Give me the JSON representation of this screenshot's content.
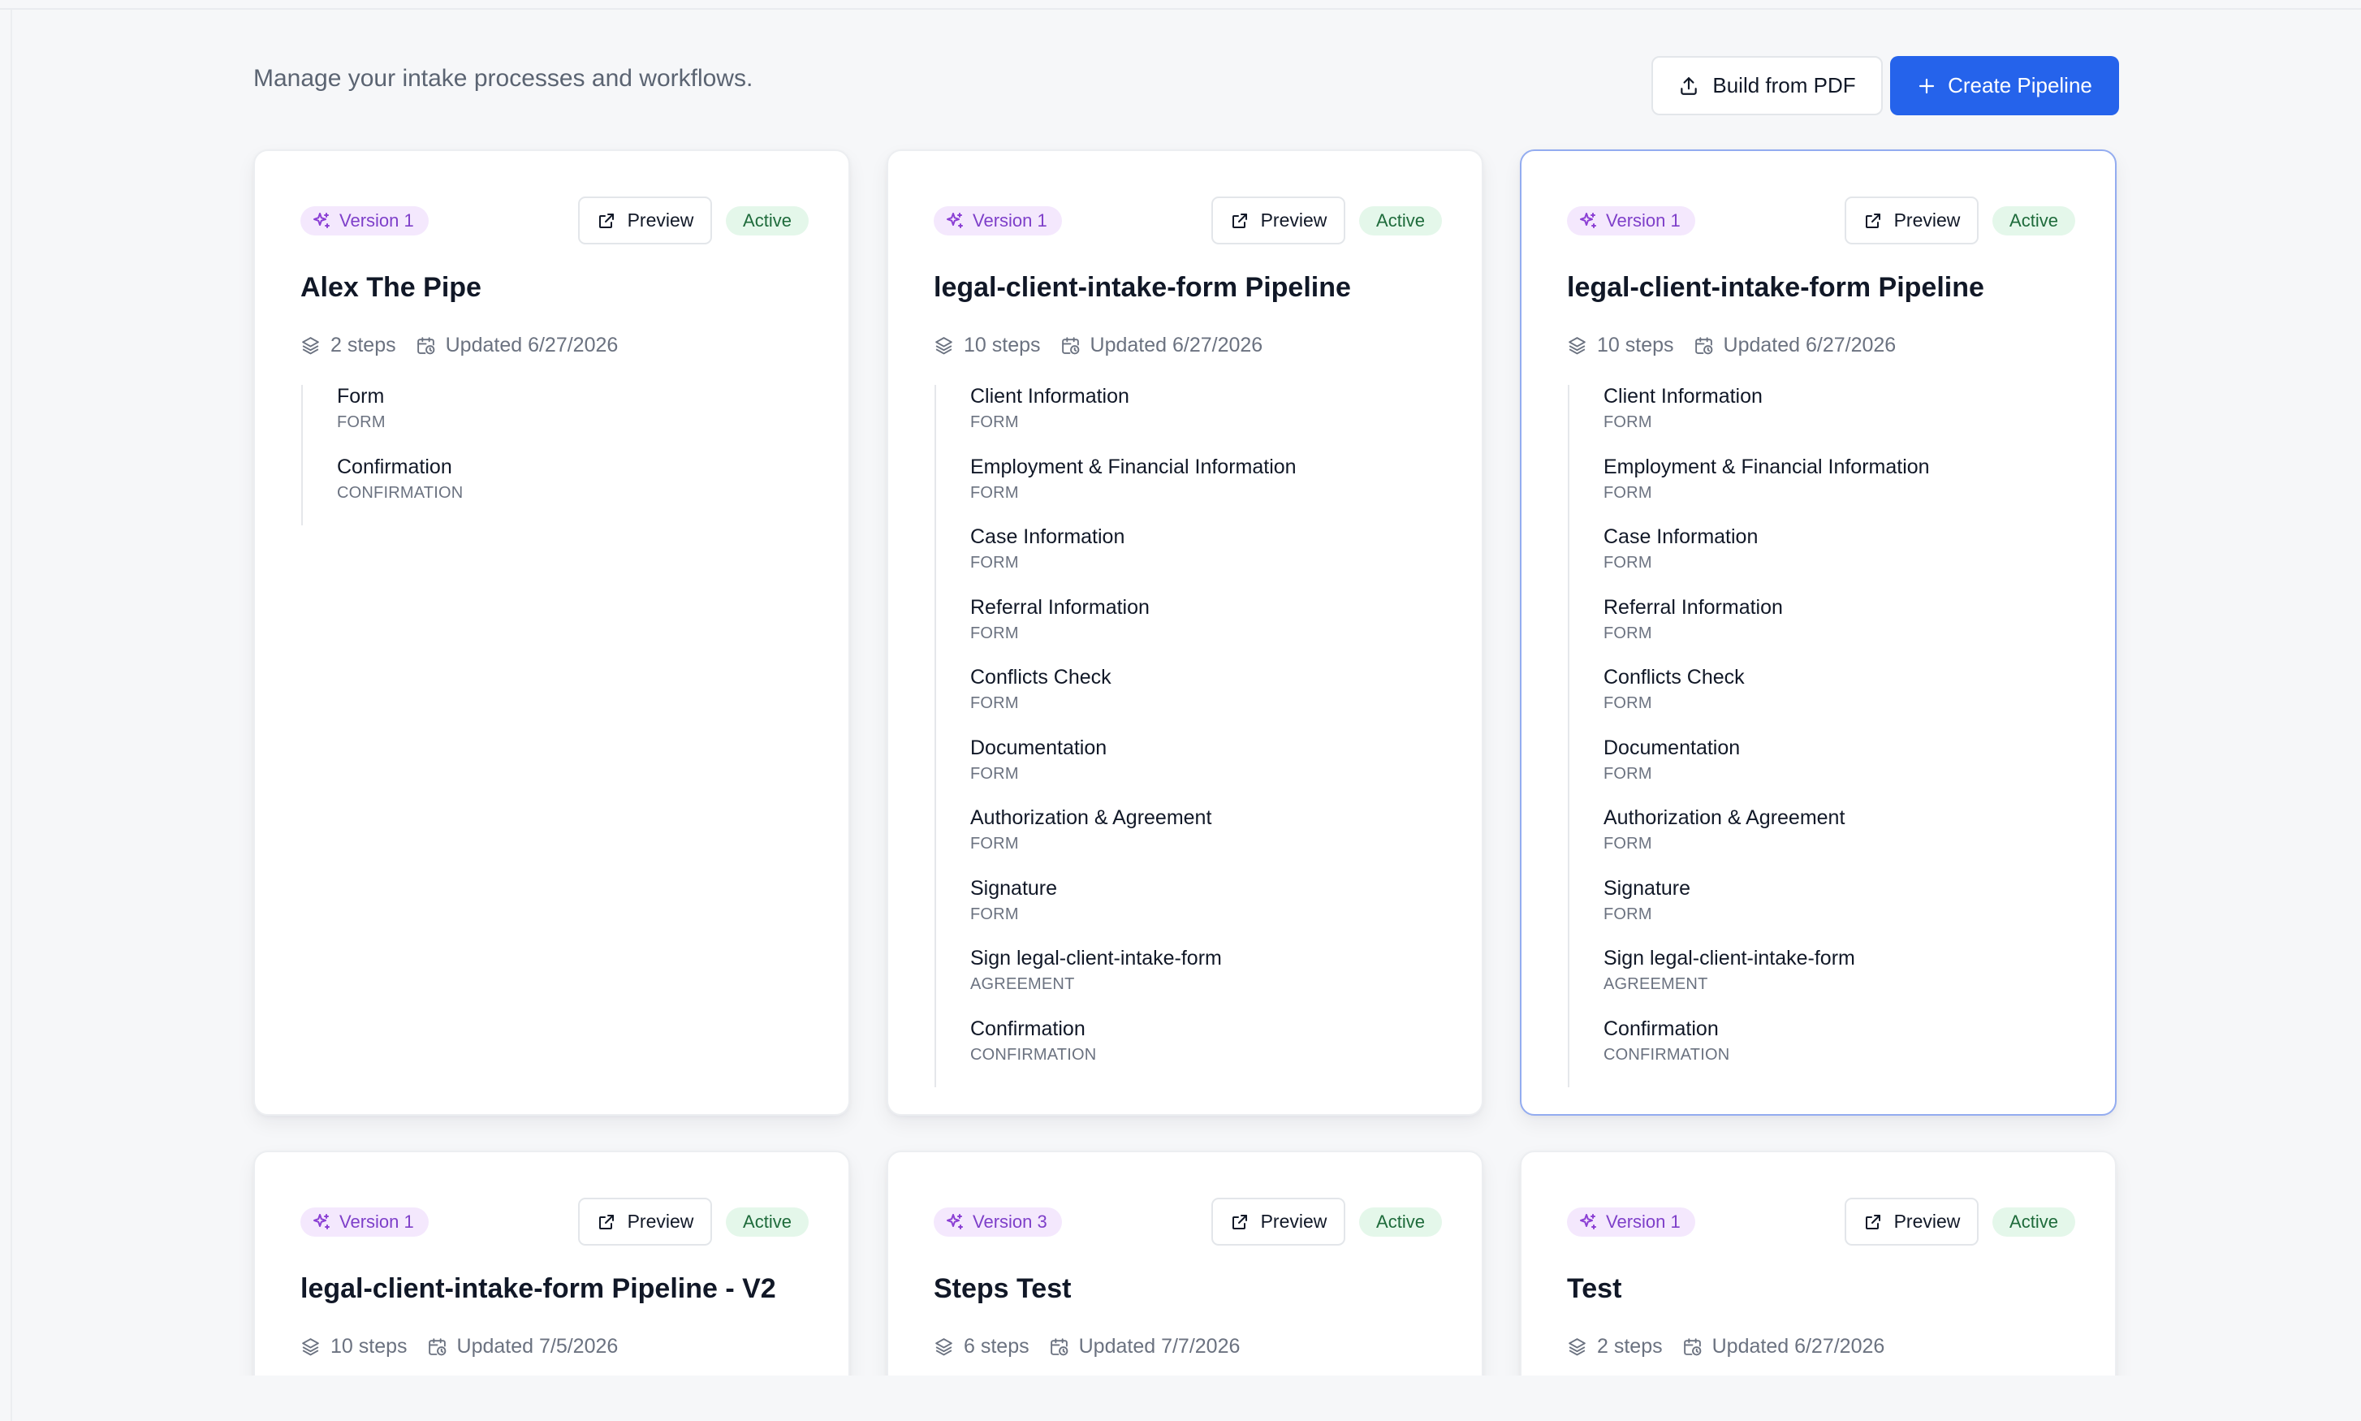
{
  "header": {
    "subtitle": "Manage your intake processes and workflows.",
    "build_from_pdf_label": "Build from PDF",
    "create_pipeline_label": "Create Pipeline"
  },
  "colors": {
    "primary": "#2563eb",
    "version_badge_bg": "#f4e8fd",
    "version_badge_text": "#7e3fc9",
    "active_badge_bg": "#e4f7ea",
    "active_badge_text": "#1e6b3b"
  },
  "icons": {
    "build_from_pdf": "upload-icon",
    "create_pipeline": "plus-icon",
    "version": "sparkles-icon",
    "preview": "external-link-icon",
    "steps": "layers-icon",
    "updated": "calendar-clock-icon"
  },
  "pipelines": [
    {
      "version": "Version 1",
      "preview_label": "Preview",
      "status": "Active",
      "title": "Alex The Pipe",
      "steps_count": "2 steps",
      "updated": "Updated 6/27/2026",
      "steps": [
        {
          "name": "Form",
          "type": "FORM"
        },
        {
          "name": "Confirmation",
          "type": "CONFIRMATION"
        }
      ]
    },
    {
      "version": "Version 1",
      "preview_label": "Preview",
      "status": "Active",
      "title": "legal-client-intake-form Pipeline",
      "steps_count": "10 steps",
      "updated": "Updated 6/27/2026",
      "steps": [
        {
          "name": "Client Information",
          "type": "FORM"
        },
        {
          "name": "Employment & Financial Information",
          "type": "FORM"
        },
        {
          "name": "Case Information",
          "type": "FORM"
        },
        {
          "name": "Referral Information",
          "type": "FORM"
        },
        {
          "name": "Conflicts Check",
          "type": "FORM"
        },
        {
          "name": "Documentation",
          "type": "FORM"
        },
        {
          "name": "Authorization & Agreement",
          "type": "FORM"
        },
        {
          "name": "Signature",
          "type": "FORM"
        },
        {
          "name": "Sign legal-client-intake-form",
          "type": "AGREEMENT"
        },
        {
          "name": "Confirmation",
          "type": "CONFIRMATION"
        }
      ]
    },
    {
      "version": "Version 1",
      "preview_label": "Preview",
      "status": "Active",
      "title": "legal-client-intake-form Pipeline",
      "steps_count": "10 steps",
      "updated": "Updated 6/27/2026",
      "steps": [
        {
          "name": "Client Information",
          "type": "FORM"
        },
        {
          "name": "Employment & Financial Information",
          "type": "FORM"
        },
        {
          "name": "Case Information",
          "type": "FORM"
        },
        {
          "name": "Referral Information",
          "type": "FORM"
        },
        {
          "name": "Conflicts Check",
          "type": "FORM"
        },
        {
          "name": "Documentation",
          "type": "FORM"
        },
        {
          "name": "Authorization & Agreement",
          "type": "FORM"
        },
        {
          "name": "Signature",
          "type": "FORM"
        },
        {
          "name": "Sign legal-client-intake-form",
          "type": "AGREEMENT"
        },
        {
          "name": "Confirmation",
          "type": "CONFIRMATION"
        }
      ]
    },
    {
      "version": "Version 1",
      "preview_label": "Preview",
      "status": "Active",
      "title": "legal-client-intake-form Pipeline - V2",
      "steps_count": "10 steps",
      "updated": "Updated 7/5/2026",
      "steps": []
    },
    {
      "version": "Version 3",
      "preview_label": "Preview",
      "status": "Active",
      "title": "Steps Test",
      "steps_count": "6 steps",
      "updated": "Updated 7/7/2026",
      "steps": []
    },
    {
      "version": "Version 1",
      "preview_label": "Preview",
      "status": "Active",
      "title": "Test",
      "steps_count": "2 steps",
      "updated": "Updated 6/27/2026",
      "steps": []
    }
  ]
}
